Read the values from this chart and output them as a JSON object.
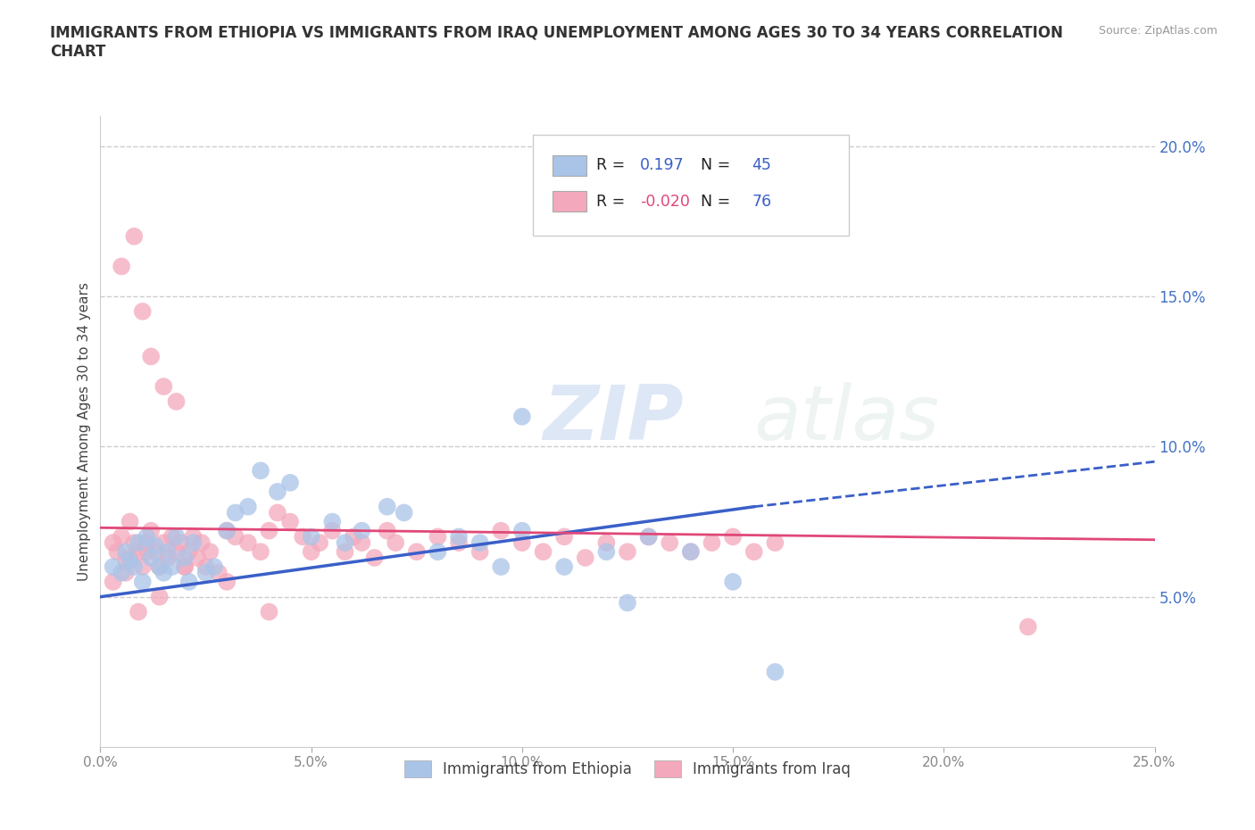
{
  "title": "IMMIGRANTS FROM ETHIOPIA VS IMMIGRANTS FROM IRAQ UNEMPLOYMENT AMONG AGES 30 TO 34 YEARS CORRELATION\nCHART",
  "ylabel": "Unemployment Among Ages 30 to 34 years",
  "source_text": "Source: ZipAtlas.com",
  "xlim": [
    0.0,
    0.25
  ],
  "ylim": [
    0.0,
    0.21
  ],
  "xticks": [
    0.0,
    0.05,
    0.1,
    0.15,
    0.2,
    0.25
  ],
  "xtick_labels": [
    "0.0%",
    "5.0%",
    "10.0%",
    "15.0%",
    "20.0%",
    "25.0%"
  ],
  "yticks": [
    0.05,
    0.1,
    0.15,
    0.2
  ],
  "ytick_labels": [
    "5.0%",
    "10.0%",
    "15.0%",
    "20.0%"
  ],
  "ethiopia_color": "#aac4e8",
  "iraq_color": "#f4a8bc",
  "ethiopia_line_color": "#3a5fc8",
  "iraq_line_color": "#e04878",
  "r_ethiopia": 0.197,
  "n_ethiopia": 45,
  "r_iraq": -0.02,
  "n_iraq": 76,
  "legend_label_ethiopia": "Immigrants from Ethiopia",
  "legend_label_iraq": "Immigrants from Iraq",
  "watermark_zip": "ZIP",
  "watermark_atlas": "atlas",
  "background_color": "#ffffff",
  "grid_color": "#cccccc",
  "ytick_color": "#4472c4",
  "xtick_color": "#888888",
  "ethiopia_x": [
    0.003,
    0.005,
    0.006,
    0.007,
    0.008,
    0.009,
    0.01,
    0.011,
    0.012,
    0.013,
    0.014,
    0.015,
    0.016,
    0.017,
    0.018,
    0.02,
    0.021,
    0.022,
    0.025,
    0.027,
    0.03,
    0.032,
    0.035,
    0.038,
    0.042,
    0.045,
    0.05,
    0.055,
    0.058,
    0.062,
    0.068,
    0.072,
    0.08,
    0.085,
    0.09,
    0.095,
    0.1,
    0.11,
    0.12,
    0.125,
    0.13,
    0.14,
    0.15,
    0.16,
    0.1
  ],
  "ethiopia_y": [
    0.06,
    0.058,
    0.065,
    0.062,
    0.06,
    0.068,
    0.055,
    0.07,
    0.063,
    0.067,
    0.06,
    0.058,
    0.065,
    0.06,
    0.07,
    0.063,
    0.055,
    0.068,
    0.058,
    0.06,
    0.072,
    0.078,
    0.08,
    0.092,
    0.085,
    0.088,
    0.07,
    0.075,
    0.068,
    0.072,
    0.08,
    0.078,
    0.065,
    0.07,
    0.068,
    0.06,
    0.072,
    0.06,
    0.065,
    0.048,
    0.07,
    0.065,
    0.055,
    0.025,
    0.11
  ],
  "iraq_x": [
    0.003,
    0.004,
    0.005,
    0.006,
    0.007,
    0.008,
    0.009,
    0.01,
    0.011,
    0.012,
    0.013,
    0.014,
    0.015,
    0.016,
    0.017,
    0.018,
    0.019,
    0.02,
    0.021,
    0.022,
    0.023,
    0.024,
    0.025,
    0.026,
    0.028,
    0.03,
    0.032,
    0.035,
    0.038,
    0.04,
    0.042,
    0.045,
    0.048,
    0.05,
    0.052,
    0.055,
    0.058,
    0.06,
    0.062,
    0.065,
    0.068,
    0.07,
    0.075,
    0.08,
    0.085,
    0.09,
    0.095,
    0.1,
    0.105,
    0.11,
    0.115,
    0.12,
    0.125,
    0.13,
    0.135,
    0.14,
    0.145,
    0.15,
    0.155,
    0.16,
    0.005,
    0.008,
    0.01,
    0.012,
    0.015,
    0.018,
    0.003,
    0.006,
    0.009,
    0.014,
    0.22,
    0.007,
    0.011,
    0.02,
    0.03,
    0.04
  ],
  "iraq_y": [
    0.068,
    0.065,
    0.07,
    0.062,
    0.063,
    0.068,
    0.065,
    0.06,
    0.068,
    0.072,
    0.065,
    0.06,
    0.068,
    0.063,
    0.07,
    0.065,
    0.068,
    0.06,
    0.065,
    0.07,
    0.063,
    0.068,
    0.06,
    0.065,
    0.058,
    0.072,
    0.07,
    0.068,
    0.065,
    0.072,
    0.078,
    0.075,
    0.07,
    0.065,
    0.068,
    0.072,
    0.065,
    0.07,
    0.068,
    0.063,
    0.072,
    0.068,
    0.065,
    0.07,
    0.068,
    0.065,
    0.072,
    0.068,
    0.065,
    0.07,
    0.063,
    0.068,
    0.065,
    0.07,
    0.068,
    0.065,
    0.068,
    0.07,
    0.065,
    0.068,
    0.16,
    0.17,
    0.145,
    0.13,
    0.12,
    0.115,
    0.055,
    0.058,
    0.045,
    0.05,
    0.04,
    0.075,
    0.065,
    0.06,
    0.055,
    0.045
  ]
}
